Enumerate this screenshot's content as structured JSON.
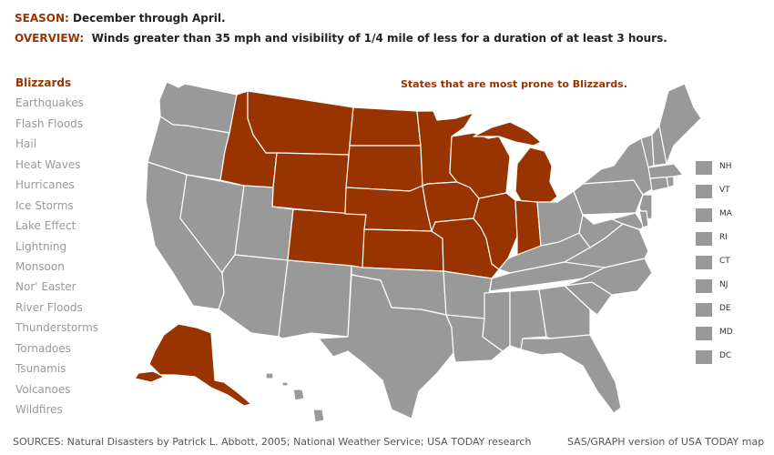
{
  "header": {
    "season_label": "SEASON:",
    "season_text": "December through April.",
    "overview_label": "OVERVIEW:",
    "overview_text": "Winds greater than 35 mph and visibility of 1/4 mile of less for a duration of at least 3 hours."
  },
  "menu": [
    {
      "label": "Blizzards",
      "active": true
    },
    {
      "label": "Earthquakes"
    },
    {
      "label": "Flash Floods"
    },
    {
      "label": "Hail"
    },
    {
      "label": "Heat Waves"
    },
    {
      "label": "Hurricanes"
    },
    {
      "label": "Ice Storms"
    },
    {
      "label": "Lake Effect"
    },
    {
      "label": "Lightning"
    },
    {
      "label": "Monsoon"
    },
    {
      "label": "Nor' Easter"
    },
    {
      "label": "River Floods"
    },
    {
      "label": "Thunderstorms"
    },
    {
      "label": "Tornadoes"
    },
    {
      "label": "Tsunamis"
    },
    {
      "label": "Volcanoes"
    },
    {
      "label": "Wildfires"
    }
  ],
  "map": {
    "title": "States that are most prone to Blizzards.",
    "highlight_color": "#993300",
    "base_color": "#999999",
    "border_color": "#ffffff",
    "highlighted_states": [
      "Alaska",
      "Idaho",
      "Montana",
      "Wyoming",
      "Colorado",
      "North Dakota",
      "South Dakota",
      "Nebraska",
      "Kansas",
      "Minnesota",
      "Iowa",
      "Missouri",
      "Wisconsin",
      "Illinois",
      "Michigan",
      "Indiana"
    ],
    "small_states_legend": [
      "NH",
      "VT",
      "MA",
      "RI",
      "CT",
      "NJ",
      "DE",
      "MD",
      "DC"
    ]
  },
  "footer": {
    "sources": "SOURCES: Natural Disasters by Patrick L. Abbott, 2005; National Weather Service; USA TODAY research",
    "credit": "SAS/GRAPH version of USA TODAY map"
  }
}
